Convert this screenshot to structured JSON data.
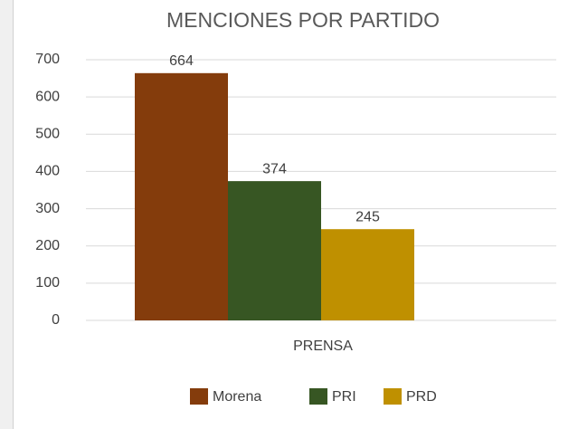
{
  "chart_data": {
    "type": "bar",
    "title": "MENCIONES POR PARTIDO",
    "categories": [
      "PRENSA"
    ],
    "series": [
      {
        "name": "Morena",
        "color": "#843c0c",
        "values": [
          664
        ]
      },
      {
        "name": "PRI",
        "color": "#375623",
        "values": [
          374
        ]
      },
      {
        "name": "PRD",
        "color": "#bf9000",
        "values": [
          245
        ]
      }
    ],
    "ylim": [
      0,
      700
    ],
    "yticks": [
      0,
      100,
      200,
      300,
      400,
      500,
      600,
      700
    ],
    "grid": true,
    "legend": "bottom"
  }
}
